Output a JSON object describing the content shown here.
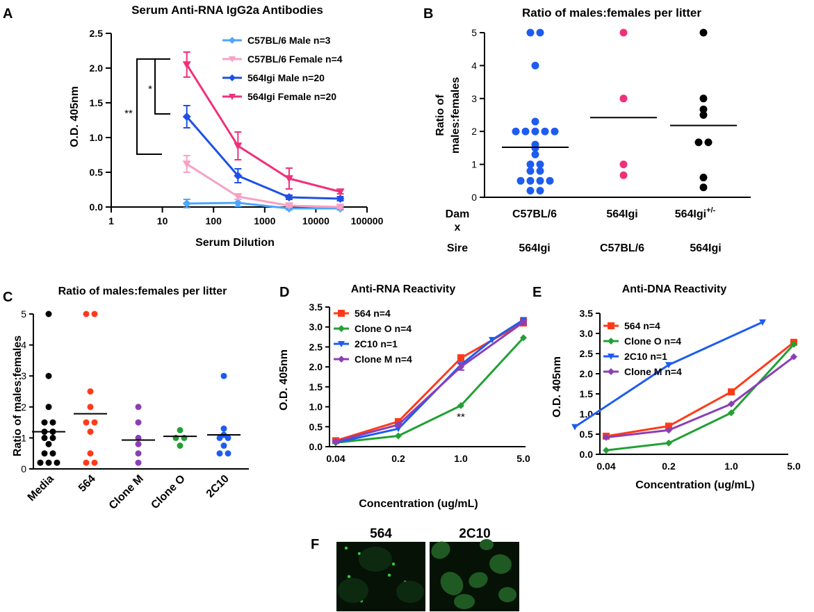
{
  "panel_letters": {
    "A": "A",
    "B": "B",
    "C": "C",
    "D": "D",
    "E": "E",
    "F": "F"
  },
  "chart_data": [
    {
      "id": "A",
      "type": "line",
      "title": "Serum Anti-RNA IgG2a Antibodies",
      "xlabel": "Serum Dilution",
      "ylabel": "O.D. 405nm",
      "xscale": "log",
      "xlim": [
        1,
        100000
      ],
      "ylim": [
        0,
        2.5
      ],
      "xticks": [
        "1",
        "10",
        "100",
        "1000",
        "10000",
        "100000"
      ],
      "yticks": [
        "0.0",
        "0.5",
        "1.0",
        "1.5",
        "2.0",
        "2.5"
      ],
      "x": [
        30,
        300,
        3000,
        30000
      ],
      "series": [
        {
          "name": "C57BL/6 Male n=3",
          "color": "#4da6ff",
          "marker": "diamond",
          "values": [
            0.05,
            0.06,
            -0.02,
            -0.02
          ],
          "err": [
            0.06,
            0.05,
            0.02,
            0.02
          ]
        },
        {
          "name": "C57BL/6 Female n=4",
          "color": "#f7a1c4",
          "marker": "tri-down",
          "values": [
            0.62,
            0.15,
            0.02,
            0.0
          ],
          "err": [
            0.12,
            0.04,
            0.02,
            0.02
          ]
        },
        {
          "name": "564Igi Male n=20",
          "color": "#1e50e6",
          "marker": "diamond",
          "values": [
            1.3,
            0.45,
            0.14,
            0.12
          ],
          "err": [
            0.16,
            0.1,
            0.03,
            0.03
          ]
        },
        {
          "name": "564Igi Female n=20",
          "color": "#f0307a",
          "marker": "tri-down",
          "values": [
            2.05,
            0.88,
            0.41,
            0.22
          ],
          "err": [
            0.18,
            0.2,
            0.15,
            0.03
          ]
        }
      ],
      "annotations": [
        "*",
        "**"
      ]
    },
    {
      "id": "B",
      "type": "scatter",
      "title": "Ratio of males:females per litter",
      "ylabel_lines": [
        "Ratio of",
        "males:females"
      ],
      "ylim": [
        0,
        5
      ],
      "yticks": [
        "0",
        "1",
        "2",
        "3",
        "4",
        "5"
      ],
      "row_labels": {
        "dam": "Dam",
        "x": "x",
        "sire": "Sire"
      },
      "groups": [
        {
          "dam": "C57BL/6",
          "sire": "564Igi",
          "color": "#1e5cf0",
          "mean": 1.52,
          "points": [
            5,
            5,
            4,
            2.3,
            2,
            2,
            2,
            2,
            2,
            1.6,
            1.5,
            1.3,
            1,
            1,
            0.8,
            0.8,
            0.5,
            0.5,
            0.5,
            0.5,
            0.2,
            0.2
          ]
        },
        {
          "dam": "564Igi",
          "sire": "C57BL/6",
          "color": "#f0307a",
          "mean": 2.42,
          "points": [
            5,
            3,
            1,
            0.67
          ]
        },
        {
          "dam": "564Igi",
          "dam_sup": "+/-",
          "sire": "564Igi",
          "color": "#000000",
          "mean": 2.18,
          "points": [
            5,
            3,
            2.67,
            2.5,
            1.67,
            1.67,
            0.6,
            0.3
          ]
        }
      ]
    },
    {
      "id": "C",
      "type": "scatter",
      "title": "Ratio of males:females per litter",
      "ylabel": "Ratio of males:females",
      "ylim": [
        0,
        5
      ],
      "yticks": [
        "0",
        "1",
        "2",
        "3",
        "4",
        "5"
      ],
      "groups": [
        {
          "name": "Media",
          "color": "#000000",
          "mean": 1.2,
          "points": [
            5,
            3,
            2,
            1.5,
            1.5,
            1.2,
            1.2,
            1.0,
            1.0,
            0.8,
            0.5,
            0.5,
            0.2,
            0.2,
            0.2
          ]
        },
        {
          "name": "564",
          "color": "#ff3a1a",
          "mean": 1.78,
          "points": [
            5,
            5,
            2.5,
            2,
            1.5,
            1.5,
            1.2,
            0.5,
            0.2,
            0.2
          ]
        },
        {
          "name": "Clone M",
          "color": "#8a3fb5",
          "mean": 0.93,
          "points": [
            2,
            1.5,
            1.0,
            0.8,
            0.5,
            0.2
          ]
        },
        {
          "name": "Clone O",
          "color": "#22a035",
          "mean": 1.05,
          "points": [
            1.25,
            1.0,
            1.0,
            0.75
          ]
        },
        {
          "name": "2C10",
          "color": "#1e5cf0",
          "mean": 1.1,
          "points": [
            3,
            1.3,
            1.1,
            1.0,
            1.0,
            0.75,
            0.5,
            0.5
          ]
        }
      ]
    },
    {
      "id": "D",
      "type": "line",
      "title": "Anti-RNA Reactivity",
      "xlabel": "Concentration (ug/mL)",
      "ylabel": "O.D. 405nm",
      "ylim": [
        0,
        3.5
      ],
      "yticks": [
        "0.0",
        "0.5",
        "1.0",
        "1.5",
        "2.0",
        "2.5",
        "3.0",
        "3.5"
      ],
      "xticks": [
        "0.04",
        "0.2",
        "1.0",
        "5.0"
      ],
      "series": [
        {
          "name": "564 n=4",
          "color": "#ff3a1a",
          "marker": "square",
          "x": [
            0,
            1,
            2,
            3
          ],
          "values": [
            0.15,
            0.63,
            2.22,
            3.12
          ],
          "err": [
            0.02,
            0.04,
            0.08,
            0.09
          ]
        },
        {
          "name": "Clone O n=4",
          "color": "#22a035",
          "marker": "diamond",
          "x": [
            0,
            1,
            2,
            3
          ],
          "values": [
            0.1,
            0.27,
            1.03,
            2.73
          ],
          "err": [
            0,
            0,
            0,
            0
          ]
        },
        {
          "name": "2C10 n=1",
          "color": "#1e5cf0",
          "marker": "tri-down",
          "x": [
            0,
            1,
            2,
            2.5,
            3
          ],
          "values": [
            0.1,
            0.45,
            2.05,
            2.68,
            3.18
          ],
          "err": [
            0,
            0,
            0,
            0,
            0
          ]
        },
        {
          "name": "Clone M n=4",
          "color": "#8a3fb5",
          "marker": "diamond",
          "x": [
            0,
            1,
            2,
            3
          ],
          "values": [
            0.13,
            0.55,
            2.0,
            3.12
          ],
          "err": [
            0.02,
            0.04,
            0.08,
            0.05
          ]
        }
      ],
      "annotations": [
        "**"
      ]
    },
    {
      "id": "E",
      "type": "line",
      "title": "Anti-DNA Reactivity",
      "xlabel": "Concentration (ug/mL)",
      "ylabel": "O.D. 405nm",
      "ylim": [
        0,
        3.5
      ],
      "yticks": [
        "0.0",
        "0.5",
        "1.0",
        "1.5",
        "2.0",
        "2.5",
        "3.0",
        "3.5"
      ],
      "xticks": [
        "0.04",
        "0.2",
        "1.0",
        "5.0"
      ],
      "series": [
        {
          "name": "564 n=4",
          "color": "#ff3a1a",
          "marker": "square",
          "x": [
            0,
            1,
            2,
            3
          ],
          "values": [
            0.45,
            0.7,
            1.55,
            2.78
          ]
        },
        {
          "name": "Clone O n=4",
          "color": "#22a035",
          "marker": "diamond",
          "x": [
            0,
            1,
            2,
            3
          ],
          "values": [
            0.1,
            0.28,
            1.03,
            2.73
          ]
        },
        {
          "name": "2C10 n=1",
          "color": "#1e5cf0",
          "marker": "tri-down",
          "x": [
            -0.5,
            1,
            2.5
          ],
          "values": [
            0.68,
            2.22,
            3.28
          ]
        },
        {
          "name": "Clone M n=4",
          "color": "#8a3fb5",
          "marker": "diamond",
          "x": [
            0,
            1,
            2,
            3
          ],
          "values": [
            0.42,
            0.6,
            1.25,
            2.42
          ]
        }
      ]
    }
  ],
  "microscopy": {
    "labels": [
      "564",
      "2C10"
    ],
    "color": "#2bd13a"
  }
}
